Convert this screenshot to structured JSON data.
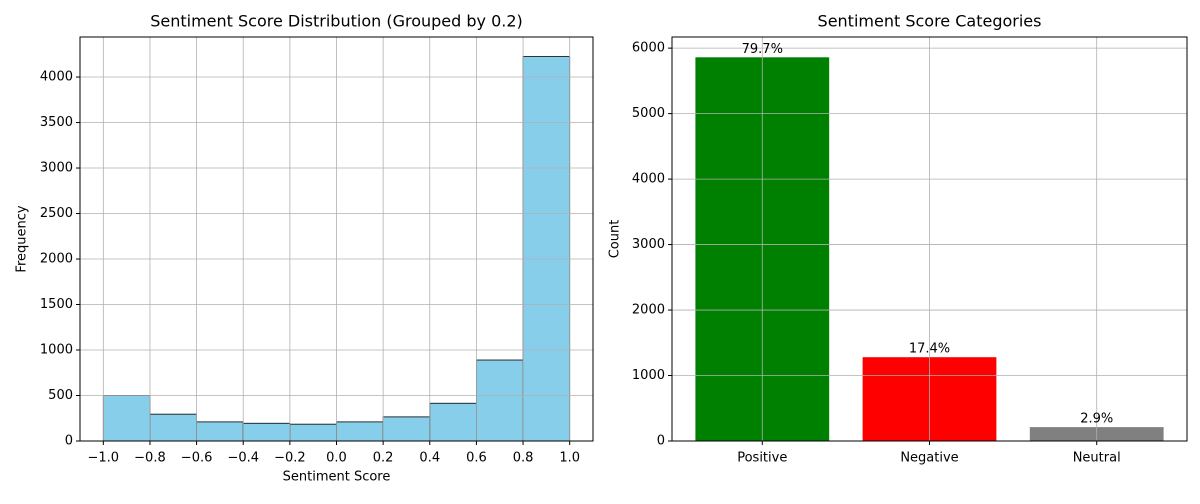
{
  "chart_data": [
    {
      "type": "histogram",
      "title": "Sentiment Score Distribution (Grouped by 0.2)",
      "x_label": "Sentiment Score",
      "y_label": "Frequency",
      "bins": [
        -1.0,
        -0.8,
        -0.6,
        -0.4,
        -0.2,
        0.0,
        0.2,
        0.4,
        0.6,
        0.8,
        1.0
      ],
      "values": [
        500,
        295,
        210,
        195,
        185,
        210,
        265,
        415,
        890,
        4225
      ],
      "color": "#87ceeb",
      "edgecolor": "#000000",
      "xlim": [
        -1.1,
        1.1
      ],
      "ylim": [
        0,
        4440
      ],
      "xticks": [
        {
          "value": -1.0,
          "label": "−1.0"
        },
        {
          "value": -0.8,
          "label": "−0.8"
        },
        {
          "value": -0.6,
          "label": "−0.6"
        },
        {
          "value": -0.4,
          "label": "−0.4"
        },
        {
          "value": -0.2,
          "label": "−0.2"
        },
        {
          "value": 0.0,
          "label": "0.0"
        },
        0.2,
        0.4,
        0.6,
        0.8,
        {
          "value": 1.0,
          "label": "1.0"
        }
      ],
      "yticks": [
        0,
        500,
        1000,
        1500,
        2000,
        2500,
        3000,
        3500,
        4000
      ],
      "grid": true
    },
    {
      "type": "bar",
      "title": "Sentiment Score Categories",
      "y_label": "Count",
      "categories": [
        "Positive",
        "Negative",
        "Neutral"
      ],
      "values": [
        5860,
        1280,
        212
      ],
      "annotations": [
        "79.7%",
        "17.4%",
        "2.9%"
      ],
      "colors": [
        "#008000",
        "#ff0000",
        "#808080"
      ],
      "ylim": [
        0,
        6170
      ],
      "yticks": [
        0,
        1000,
        2000,
        3000,
        4000,
        5000,
        6000
      ],
      "grid": true
    }
  ]
}
